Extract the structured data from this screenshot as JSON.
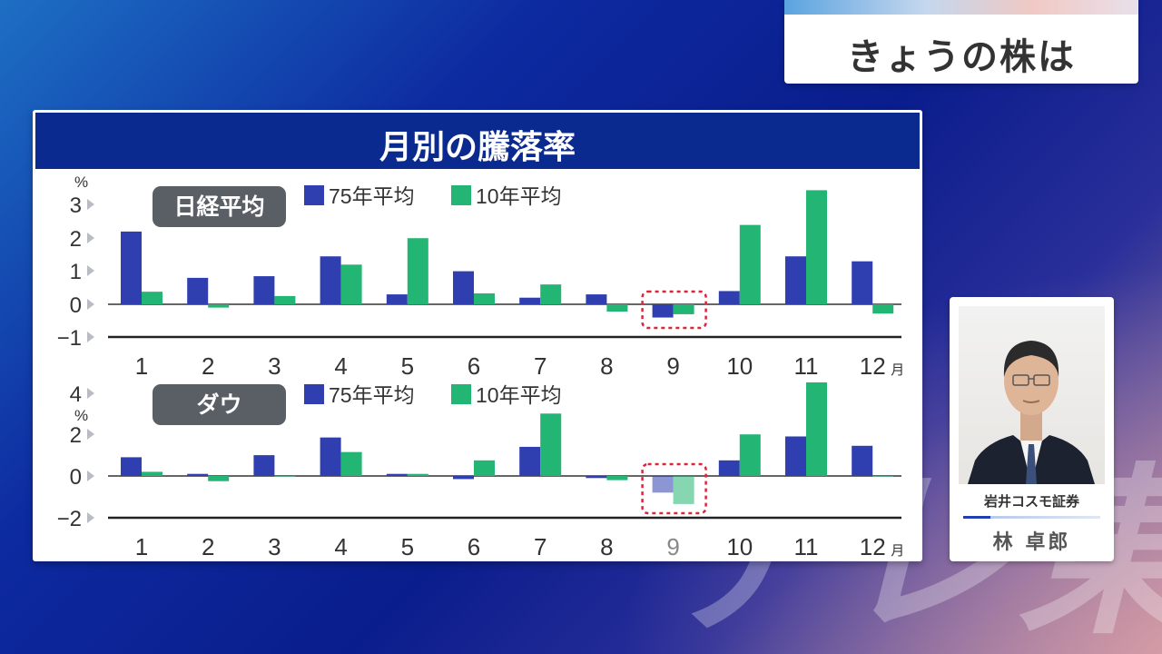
{
  "overlay": {
    "watermark": "テレ東",
    "top_panel_title": "きょうの株は"
  },
  "main_title": "月別の騰落率",
  "person": {
    "company": "岩井コスモ証券",
    "name": "林 卓郎"
  },
  "colors": {
    "series_75": "#2f3fb0",
    "series_10": "#22b573",
    "badge": "#5a5f66",
    "highlight": "#d6283c"
  },
  "chart_data": [
    {
      "type": "bar",
      "panel_label": "日経平均",
      "unit": "%",
      "x_unit": "月",
      "categories": [
        "1",
        "2",
        "3",
        "4",
        "5",
        "6",
        "7",
        "8",
        "9",
        "10",
        "11",
        "12"
      ],
      "series": [
        {
          "name": "75年平均",
          "values": [
            2.2,
            0.8,
            0.85,
            1.45,
            0.3,
            1.0,
            0.2,
            0.3,
            -0.4,
            0.4,
            1.45,
            1.3
          ]
        },
        {
          "name": "10年平均",
          "values": [
            0.38,
            -0.1,
            0.25,
            1.2,
            2.0,
            0.33,
            0.6,
            -0.22,
            -0.3,
            2.4,
            3.45,
            -0.28
          ]
        }
      ],
      "ylim": [
        -1,
        3
      ],
      "yticks": [
        "3",
        "2",
        "1",
        "0",
        "−1"
      ],
      "legend": "top-center",
      "highlight_category": "9"
    },
    {
      "type": "bar",
      "panel_label": "ダウ",
      "unit": "%",
      "x_unit": "月",
      "categories": [
        "1",
        "2",
        "3",
        "4",
        "5",
        "6",
        "7",
        "8",
        "9",
        "10",
        "11",
        "12"
      ],
      "series": [
        {
          "name": "75年平均",
          "values": [
            0.9,
            0.1,
            1.0,
            1.85,
            0.1,
            -0.15,
            1.4,
            -0.1,
            -0.8,
            0.75,
            1.9,
            1.45
          ]
        },
        {
          "name": "10年平均",
          "values": [
            0.2,
            -0.25,
            0.0,
            1.15,
            0.1,
            0.75,
            3.0,
            -0.2,
            -1.35,
            2.0,
            4.5,
            0.0
          ]
        }
      ],
      "ylim": [
        -2,
        4
      ],
      "yticks": [
        "4",
        "2",
        "0",
        "−2"
      ],
      "legend": "top-center",
      "highlight_category": "9"
    }
  ]
}
